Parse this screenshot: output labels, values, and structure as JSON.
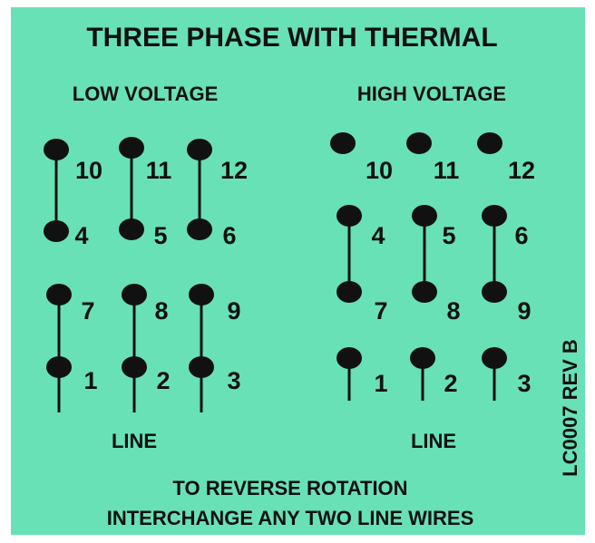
{
  "title": "THREE PHASE WITH THERMAL",
  "sections": [
    {
      "heading": "LOW VOLTAGE",
      "terminals": [
        "10",
        "11",
        "12",
        "4",
        "5",
        "6",
        "7",
        "8",
        "9",
        "1",
        "2",
        "3"
      ],
      "line_label": "LINE"
    },
    {
      "heading": "HIGH VOLTAGE",
      "terminals": [
        "10",
        "11",
        "12",
        "4",
        "5",
        "6",
        "7",
        "8",
        "9",
        "1",
        "2",
        "3"
      ],
      "line_label": "LINE"
    }
  ],
  "footer": [
    "TO REVERSE ROTATION",
    "INTERCHANGE ANY TWO LINE WIRES"
  ],
  "side_code": "LC0007 REV B"
}
